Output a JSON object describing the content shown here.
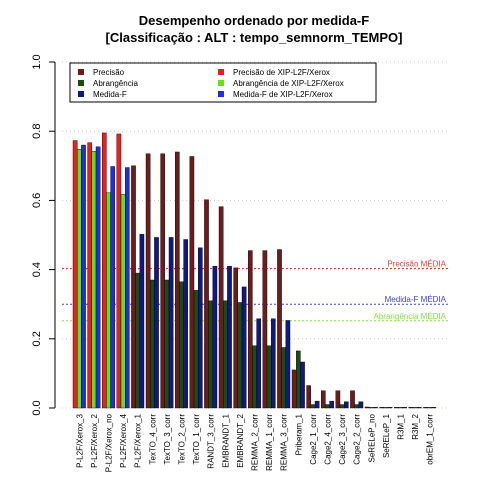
{
  "chart_data": {
    "type": "bar",
    "title": "Desempenho ordenado por medida-F",
    "subtitle": "[Classificação : ALT : tempo_semnorm_TEMPO]",
    "xlabel": "",
    "ylabel": "",
    "ylim": [
      0,
      1.0
    ],
    "yticks": [
      "0.0",
      "0.2",
      "0.4",
      "0.6",
      "0.8",
      "1.0"
    ],
    "grid": "horizontal-dotted",
    "legend_placement": "top",
    "categories": [
      "P-L2F/Xerox_3",
      "P-L2F/Xerox_2",
      "P-L2F/Xerox_no",
      "P-L2F/Xerox_4",
      "P-L2F/Xerox_1",
      "TexTO_4_corr",
      "TexTO_3_corr",
      "TexTO_2_corr",
      "TexTO_1_corr",
      "RANDT_3_corr",
      "EMBRANDT_1",
      "EMBRANDT_2",
      "REMMA_2_corr",
      "REMMA_1_corr",
      "REMMA_3_corr",
      "Priberam_1",
      "Cage2_1_corr",
      "Cage2_4_corr",
      "Cage2_3_corr",
      "Cage2_2_corr",
      "SeRELeP_no",
      "SeRELeP_1",
      "R3M_1",
      "R3M_2",
      "obrEM_1_corr"
    ],
    "series": [
      {
        "name": "Precisão",
        "color": "#6B1D1D",
        "values": [
          null,
          null,
          null,
          null,
          0.7,
          0.735,
          0.735,
          0.74,
          0.727,
          0.602,
          0.582,
          0.405,
          0.455,
          0.455,
          0.458,
          0.11,
          0.065,
          0.05,
          0.05,
          0.05,
          0.003,
          0.002,
          0.002,
          0.002,
          0.002
        ]
      },
      {
        "name": "Abrangência",
        "color": "#1F4A14",
        "values": [
          null,
          null,
          null,
          null,
          0.39,
          0.37,
          0.37,
          0.365,
          0.34,
          0.31,
          0.31,
          0.305,
          0.18,
          0.18,
          0.175,
          0.165,
          0.01,
          0.01,
          0.01,
          0.01,
          0.001,
          0.001,
          0.001,
          0.001,
          0.001
        ]
      },
      {
        "name": "Medida-F",
        "color": "#0D1A80",
        "values": [
          null,
          null,
          null,
          null,
          0.502,
          0.493,
          0.493,
          0.487,
          0.463,
          0.41,
          0.41,
          0.35,
          0.258,
          0.258,
          0.253,
          0.133,
          0.02,
          0.02,
          0.018,
          0.018,
          0.002,
          0.002,
          0.002,
          0.002,
          0.002
        ]
      },
      {
        "name": "Precisão  de  XIP-L2F/Xerox",
        "color": "#E8201E",
        "values": [
          0.773,
          0.767,
          0.795,
          0.792,
          null,
          null,
          null,
          null,
          null,
          null,
          null,
          null,
          null,
          null,
          null,
          null,
          null,
          null,
          null,
          null,
          null,
          null,
          null,
          null,
          null
        ]
      },
      {
        "name": "Abrangência  de  XIP-L2F/Xerox",
        "color": "#66E01E",
        "values": [
          0.748,
          0.742,
          0.622,
          0.618,
          null,
          null,
          null,
          null,
          null,
          null,
          null,
          null,
          null,
          null,
          null,
          null,
          null,
          null,
          null,
          null,
          null,
          null,
          null,
          null,
          null
        ]
      },
      {
        "name": "Medida-F  de  XIP-L2F/Xerox",
        "color": "#1E2EE0",
        "values": [
          0.76,
          0.755,
          0.698,
          0.695,
          null,
          null,
          null,
          null,
          null,
          null,
          null,
          null,
          null,
          null,
          null,
          null,
          null,
          null,
          null,
          null,
          null,
          null,
          null,
          null,
          null
        ]
      }
    ],
    "reference_lines": [
      {
        "label": "Precisão MÉDIA",
        "value": 0.403,
        "color": "#E04040"
      },
      {
        "label": "Medida-F MÉDIA",
        "value": 0.3,
        "color": "#4040E0"
      },
      {
        "label": "Abrangência MÉDIA",
        "value": 0.252,
        "color": "#80E040"
      }
    ]
  }
}
